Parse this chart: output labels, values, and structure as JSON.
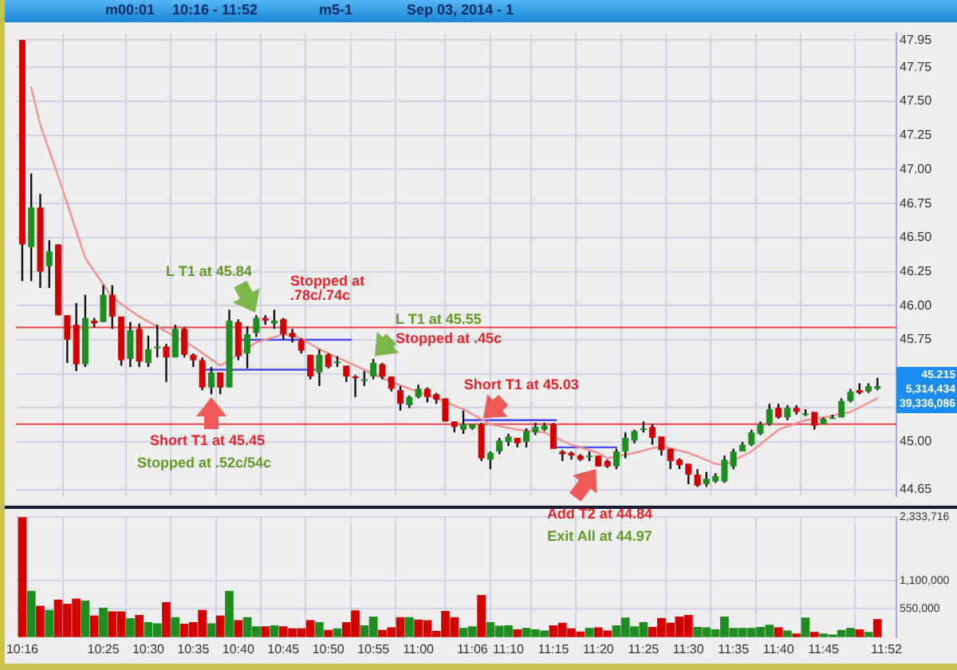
{
  "chart_data": [
    {
      "type": "candlestick",
      "x": [
        10.2667,
        10.2833,
        10.3,
        10.3167,
        10.3333,
        10.35,
        10.3667,
        10.3833,
        10.4,
        10.4167,
        10.4333,
        10.45,
        10.4667,
        10.4833,
        10.5,
        10.5167,
        10.5333,
        10.55,
        10.5667,
        10.5833,
        10.6,
        10.6167,
        10.6333,
        10.65,
        10.6667,
        10.6833,
        10.7,
        10.7167,
        10.7333,
        10.75,
        10.7667,
        10.7833,
        10.8,
        10.8167,
        10.8333,
        10.85,
        10.8667,
        10.8833,
        10.9,
        10.9167,
        10.9333,
        10.95,
        10.9667,
        10.9833,
        11,
        11.0167,
        11.0333,
        11.05,
        11.0667,
        11.0833,
        11.1,
        11.1167,
        11.1333,
        11.15,
        11.1667,
        11.1833,
        11.2,
        11.2167,
        11.2333,
        11.25,
        11.2667,
        11.2833,
        11.3,
        11.3167,
        11.3333,
        11.35,
        11.3667,
        11.3833,
        11.4,
        11.4167,
        11.4333,
        11.45,
        11.4667,
        11.4833,
        11.5,
        11.5167,
        11.5333,
        11.55,
        11.5667,
        11.5833,
        11.6,
        11.6167,
        11.6333,
        11.65,
        11.6667,
        11.6833,
        11.7,
        11.7167,
        11.7333,
        11.75,
        11.7667,
        11.7833,
        11.8,
        11.8167,
        11.8333,
        11.85
      ],
      "ohlc": [
        [
          47.95,
          47.95,
          46.18,
          46.45
        ],
        [
          46.43,
          46.97,
          46.18,
          46.72
        ],
        [
          46.72,
          46.82,
          46.13,
          46.25
        ],
        [
          46.29,
          46.48,
          46.13,
          46.4
        ],
        [
          46.45,
          46.45,
          45.93,
          45.93
        ],
        [
          45.93,
          45.93,
          45.58,
          45.75
        ],
        [
          45.86,
          46.02,
          45.52,
          45.57
        ],
        [
          45.57,
          46.08,
          45.55,
          45.91
        ],
        [
          45.89,
          45.91,
          45.84,
          45.87
        ],
        [
          45.88,
          46.15,
          45.88,
          46.08
        ],
        [
          46.08,
          46.15,
          45.83,
          45.92
        ],
        [
          45.92,
          45.92,
          45.56,
          45.6
        ],
        [
          45.61,
          45.88,
          45.55,
          45.82
        ],
        [
          45.83,
          45.87,
          45.55,
          45.59
        ],
        [
          45.58,
          45.78,
          45.55,
          45.68
        ],
        [
          45.69,
          45.86,
          45.62,
          45.7
        ],
        [
          45.7,
          45.72,
          45.44,
          45.62
        ],
        [
          45.62,
          45.86,
          45.62,
          45.83
        ],
        [
          45.83,
          45.84,
          45.62,
          45.64
        ],
        [
          45.64,
          45.65,
          45.55,
          45.6
        ],
        [
          45.6,
          45.62,
          45.38,
          45.4
        ],
        [
          45.4,
          45.55,
          45.35,
          45.51
        ],
        [
          45.51,
          45.51,
          45.35,
          45.4
        ],
        [
          45.4,
          45.97,
          45.4,
          45.89
        ],
        [
          45.88,
          45.9,
          45.6,
          45.63
        ],
        [
          45.65,
          45.85,
          45.54,
          45.79
        ],
        [
          45.8,
          45.93,
          45.77,
          45.91
        ],
        [
          45.91,
          45.93,
          45.86,
          45.89
        ],
        [
          45.87,
          45.97,
          45.83,
          45.89
        ],
        [
          45.9,
          45.91,
          45.75,
          45.79
        ],
        [
          45.8,
          45.83,
          45.73,
          45.77
        ],
        [
          45.75,
          45.76,
          45.65,
          45.67
        ],
        [
          45.64,
          45.64,
          45.46,
          45.48
        ],
        [
          45.51,
          45.68,
          45.41,
          45.64
        ],
        [
          45.64,
          45.65,
          45.54,
          45.55
        ],
        [
          45.59,
          45.63,
          45.55,
          45.59
        ],
        [
          45.56,
          45.56,
          45.44,
          45.48
        ],
        [
          45.48,
          45.49,
          45.33,
          45.47
        ],
        [
          45.46,
          45.52,
          45.41,
          45.46
        ],
        [
          45.48,
          45.61,
          45.46,
          45.58
        ],
        [
          45.57,
          45.58,
          45.46,
          45.48
        ],
        [
          45.48,
          45.48,
          45.37,
          45.39
        ],
        [
          45.38,
          45.41,
          45.23,
          45.28
        ],
        [
          45.27,
          45.34,
          45.25,
          45.33
        ],
        [
          45.33,
          45.42,
          45.32,
          45.39
        ],
        [
          45.39,
          45.4,
          45.29,
          45.33
        ],
        [
          45.35,
          45.36,
          45.28,
          45.31
        ],
        [
          45.32,
          45.32,
          45.15,
          45.15
        ],
        [
          45.15,
          45.15,
          45.07,
          45.11
        ],
        [
          45.09,
          45.23,
          45.06,
          45.13
        ],
        [
          45.1,
          45.13,
          45.09,
          45.13
        ],
        [
          45.13,
          45.14,
          44.86,
          44.88
        ],
        [
          44.87,
          44.93,
          44.8,
          44.92
        ],
        [
          44.93,
          45.03,
          44.91,
          45.01
        ],
        [
          45.0,
          45.06,
          44.97,
          45.04
        ],
        [
          45.03,
          45.03,
          44.96,
          44.99
        ],
        [
          45.0,
          45.1,
          44.96,
          45.08
        ],
        [
          45.07,
          45.14,
          45.05,
          45.11
        ],
        [
          45.09,
          45.14,
          45.08,
          45.12
        ],
        [
          45.13,
          45.14,
          44.95,
          44.95
        ],
        [
          44.93,
          44.94,
          44.86,
          44.91
        ],
        [
          44.92,
          44.93,
          44.87,
          44.9
        ],
        [
          44.9,
          44.91,
          44.86,
          44.87
        ],
        [
          44.89,
          44.93,
          44.86,
          44.9
        ],
        [
          44.9,
          44.9,
          44.82,
          44.82
        ],
        [
          44.86,
          44.87,
          44.81,
          44.82
        ],
        [
          44.82,
          44.95,
          44.8,
          44.93
        ],
        [
          44.93,
          45.07,
          44.88,
          45.03
        ],
        [
          45.01,
          45.09,
          44.99,
          45.08
        ],
        [
          45.09,
          45.15,
          45.07,
          45.1
        ],
        [
          45.11,
          45.13,
          44.98,
          45.03
        ],
        [
          45.04,
          45.04,
          44.9,
          44.94
        ],
        [
          44.95,
          44.95,
          44.8,
          44.86
        ],
        [
          44.87,
          44.88,
          44.8,
          44.83
        ],
        [
          44.84,
          44.84,
          44.69,
          44.76
        ],
        [
          44.76,
          44.8,
          44.67,
          44.68
        ],
        [
          44.69,
          44.78,
          44.67,
          44.73
        ],
        [
          44.71,
          44.77,
          44.7,
          44.75
        ],
        [
          44.71,
          44.9,
          44.7,
          44.87
        ],
        [
          44.82,
          44.95,
          44.8,
          44.93
        ],
        [
          44.93,
          45.0,
          44.93,
          44.98
        ],
        [
          44.98,
          45.09,
          44.97,
          45.07
        ],
        [
          45.06,
          45.15,
          45.05,
          45.13
        ],
        [
          45.13,
          45.28,
          45.12,
          45.24
        ],
        [
          45.25,
          45.28,
          45.17,
          45.18
        ],
        [
          45.18,
          45.27,
          45.16,
          45.25
        ],
        [
          45.25,
          45.27,
          45.2,
          45.22
        ],
        [
          45.21,
          45.24,
          45.19,
          45.21
        ],
        [
          45.22,
          45.22,
          45.09,
          45.12
        ],
        [
          45.13,
          45.18,
          45.13,
          45.17
        ],
        [
          45.18,
          45.2,
          45.17,
          45.18
        ],
        [
          45.18,
          45.32,
          45.18,
          45.3
        ],
        [
          45.3,
          45.39,
          45.29,
          45.37
        ],
        [
          45.38,
          45.43,
          45.35,
          45.36
        ],
        [
          45.37,
          45.43,
          45.36,
          45.41
        ],
        [
          45.39,
          45.47,
          45.38,
          45.41
        ]
      ],
      "colors": [
        "#d40000",
        "#1e8c1e",
        "#d40000",
        "#1e8c1e",
        "#d40000",
        "#d40000",
        "#d40000",
        "#1e8c1e",
        "#d40000",
        "#1e8c1e",
        "#d40000",
        "#d40000",
        "#1e8c1e",
        "#d40000",
        "#1e8c1e",
        "#1e8c1e",
        "#d40000",
        "#1e8c1e",
        "#d40000",
        "#d40000",
        "#d40000",
        "#1e8c1e",
        "#d40000",
        "#1e8c1e",
        "#d40000",
        "#1e8c1e",
        "#1e8c1e",
        "#d40000",
        "#1e8c1e",
        "#d40000",
        "#d40000",
        "#d40000",
        "#d40000",
        "#1e8c1e",
        "#d40000",
        "#1e8c1e",
        "#d40000",
        "#d40000",
        "#1e8c1e",
        "#1e8c1e",
        "#d40000",
        "#d40000",
        "#d40000",
        "#1e8c1e",
        "#1e8c1e",
        "#d40000",
        "#d40000",
        "#d40000",
        "#d40000",
        "#1e8c1e",
        "#1e8c1e",
        "#d40000",
        "#1e8c1e",
        "#1e8c1e",
        "#1e8c1e",
        "#d40000",
        "#1e8c1e",
        "#1e8c1e",
        "#1e8c1e",
        "#d40000",
        "#d40000",
        "#d40000",
        "#d40000",
        "#1e8c1e",
        "#d40000",
        "#d40000",
        "#1e8c1e",
        "#1e8c1e",
        "#1e8c1e",
        "#1e8c1e",
        "#d40000",
        "#d40000",
        "#d40000",
        "#d40000",
        "#d40000",
        "#d40000",
        "#1e8c1e",
        "#1e8c1e",
        "#1e8c1e",
        "#1e8c1e",
        "#1e8c1e",
        "#1e8c1e",
        "#1e8c1e",
        "#1e8c1e",
        "#d40000",
        "#1e8c1e",
        "#d40000",
        "#1e8c1e",
        "#d40000",
        "#1e8c1e",
        "#1e8c1e",
        "#1e8c1e",
        "#1e8c1e",
        "#d40000",
        "#1e8c1e",
        "#1e8c1e"
      ],
      "series": [
        {
          "type": "line",
          "color": "#f29090",
          "x": [
            10.2833,
            10.3,
            10.3333,
            10.3833,
            10.4333,
            10.4833,
            10.5333,
            10.5833,
            10.6333,
            10.65,
            10.7,
            10.75,
            10.7833,
            10.8167,
            10.8833,
            10.9333,
            10.9833,
            11.0333,
            11.0833,
            11.1333,
            11.1833,
            11.2333,
            11.2833,
            11.3333,
            11.35,
            11.4,
            11.45,
            11.5,
            11.55,
            11.5667,
            11.6167,
            11.6667,
            11.7167,
            11.75,
            11.8,
            11.85
          ],
          "values": [
            47.6,
            47.33,
            46.95,
            46.35,
            46.06,
            45.92,
            45.81,
            45.7,
            45.56,
            45.6,
            45.73,
            45.79,
            45.76,
            45.68,
            45.56,
            45.47,
            45.39,
            45.32,
            45.24,
            45.13,
            45.09,
            45.07,
            44.98,
            44.92,
            44.88,
            44.92,
            44.97,
            44.92,
            44.84,
            44.83,
            44.93,
            45.09,
            45.16,
            45.18,
            45.22,
            45.32
          ]
        },
        {
          "type": "line",
          "color": "#4a4af0",
          "x": [
            10.6667,
            10.875
          ],
          "values": [
            45.75,
            45.75
          ]
        },
        {
          "type": "line",
          "color": "#4a4af0",
          "x": [
            10.605,
            10.8083
          ],
          "values": [
            45.53,
            45.53
          ]
        },
        {
          "type": "line",
          "color": "#4a4af0",
          "x": [
            11.085,
            11.255
          ],
          "values": [
            45.16,
            45.16
          ]
        },
        {
          "type": "line",
          "color": "#4a4af0",
          "x": [
            11.255,
            11.3667
          ],
          "values": [
            44.96,
            44.96
          ]
        }
      ],
      "ref_lines": [
        {
          "axis": "y",
          "value": 45.84,
          "color": "#e84848"
        },
        {
          "axis": "y",
          "value": 45.13,
          "color": "#e84848"
        }
      ],
      "xlim": [
        10.255,
        11.885
      ],
      "xticks": [
        {
          "value": 10.2667,
          "label": null
        },
        {
          "value": 10.4167,
          "label": null
        },
        {
          "value": 10.5,
          "label": null
        },
        {
          "value": 10.5833,
          "label": null
        },
        {
          "value": 10.6667,
          "label": null
        },
        {
          "value": 10.75,
          "label": null
        },
        {
          "value": 10.8333,
          "label": null
        },
        {
          "value": 10.9167,
          "label": null
        },
        {
          "value": 11,
          "label": null
        },
        {
          "value": 11.1,
          "label": null
        },
        {
          "value": 11.1667,
          "label": null
        },
        {
          "value": 11.25,
          "label": null
        },
        {
          "value": 11.3333,
          "label": null
        },
        {
          "value": 11.4167,
          "label": null
        },
        {
          "value": 11.5,
          "label": null
        },
        {
          "value": 11.5833,
          "label": null
        },
        {
          "value": 11.6667,
          "label": null
        },
        {
          "value": 11.75,
          "label": null
        },
        {
          "value": 11.8667,
          "label": null
        }
      ],
      "ylim": [
        44.6,
        48.0
      ],
      "yticks": [
        44.65,
        {
          "value": 45,
          "label": "45.00"
        },
        {
          "value": 45.25,
          "label": null
        },
        {
          "value": 45.5,
          "label": null
        },
        45.75,
        {
          "value": 46,
          "label": "46.00"
        },
        46.25,
        {
          "value": 46.5,
          "label": "46.50"
        },
        46.75,
        {
          "value": 47,
          "label": "47.00"
        },
        47.25,
        {
          "value": 47.5,
          "label": "47.50"
        },
        47.75,
        47.95
      ],
      "grid": true,
      "tick_labels": "y",
      "annotations": [
        "m00:01",
        "10:16 - 11:52",
        "m5-1",
        "Sep 03, 2014 - 1",
        {
          "text": "L T1 at 45.84",
          "x": 10.7,
          "y": 45.93
        },
        "Stopped at .78c/.74c",
        {
          "text": "L T1 at 45.55",
          "x": 10.9167,
          "y": 45.61
        },
        "Stopped at .45c",
        {
          "text": "Short T1 at 45.03",
          "x": 11.1167,
          "y": 45.16
        },
        {
          "text": "Short T1 at 45.45",
          "x": 10.6167,
          "y": 45.35
        },
        "Stopped at .52c/54c",
        {
          "text": "Add T2 at 44.84",
          "x": 11.3333,
          "y": 44.82
        },
        "Exit All at 44.97",
        "45.215",
        "5,314,434",
        "39,336,086"
      ]
    },
    {
      "type": "bar",
      "x": [
        10.2667,
        10.2833,
        10.3,
        10.3167,
        10.3333,
        10.35,
        10.3667,
        10.3833,
        10.4,
        10.4167,
        10.4333,
        10.45,
        10.4667,
        10.4833,
        10.5,
        10.5167,
        10.5333,
        10.55,
        10.5667,
        10.5833,
        10.6,
        10.6167,
        10.6333,
        10.65,
        10.6667,
        10.6833,
        10.7,
        10.7167,
        10.7333,
        10.75,
        10.7667,
        10.7833,
        10.8,
        10.8167,
        10.8333,
        10.85,
        10.8667,
        10.8833,
        10.9,
        10.9167,
        10.9333,
        10.95,
        10.9667,
        10.9833,
        11,
        11.0167,
        11.0333,
        11.05,
        11.0667,
        11.0833,
        11.1,
        11.1167,
        11.1333,
        11.15,
        11.1667,
        11.1833,
        11.2,
        11.2167,
        11.2333,
        11.25,
        11.2667,
        11.2833,
        11.3,
        11.3167,
        11.3333,
        11.35,
        11.3667,
        11.3833,
        11.4,
        11.4167,
        11.4333,
        11.45,
        11.4667,
        11.4833,
        11.5,
        11.5167,
        11.5333,
        11.55,
        11.5667,
        11.5833,
        11.6,
        11.6167,
        11.6333,
        11.65,
        11.6667,
        11.6833,
        11.7,
        11.7167,
        11.7333,
        11.75,
        11.7667,
        11.7833,
        11.8,
        11.8167,
        11.8333,
        11.85
      ],
      "values": [
        2330000,
        890000,
        600000,
        520000,
        720000,
        640000,
        740000,
        700000,
        410000,
        560000,
        490000,
        490000,
        360000,
        420000,
        280000,
        260000,
        670000,
        380000,
        250000,
        280000,
        520000,
        260000,
        410000,
        890000,
        320000,
        380000,
        200000,
        200000,
        220000,
        200000,
        160000,
        160000,
        320000,
        280000,
        130000,
        160000,
        280000,
        510000,
        220000,
        390000,
        130000,
        180000,
        380000,
        380000,
        330000,
        320000,
        110000,
        500000,
        380000,
        170000,
        200000,
        810000,
        280000,
        210000,
        220000,
        140000,
        170000,
        140000,
        120000,
        220000,
        270000,
        160000,
        100000,
        170000,
        180000,
        120000,
        220000,
        370000,
        200000,
        280000,
        190000,
        360000,
        270000,
        390000,
        420000,
        190000,
        180000,
        140000,
        390000,
        170000,
        170000,
        170000,
        190000,
        230000,
        180000,
        120000,
        60000,
        370000,
        90000,
        60000,
        40000,
        130000,
        170000,
        140000,
        90000,
        340000
      ],
      "colors": [
        "#d40000",
        "#1e8c1e",
        "#d40000",
        "#1e8c1e",
        "#d40000",
        "#d40000",
        "#d40000",
        "#1e8c1e",
        "#d40000",
        "#1e8c1e",
        "#d40000",
        "#d40000",
        "#1e8c1e",
        "#d40000",
        "#1e8c1e",
        "#1e8c1e",
        "#d40000",
        "#1e8c1e",
        "#d40000",
        "#d40000",
        "#d40000",
        "#1e8c1e",
        "#d40000",
        "#1e8c1e",
        "#d40000",
        "#1e8c1e",
        "#1e8c1e",
        "#d40000",
        "#1e8c1e",
        "#d40000",
        "#d40000",
        "#d40000",
        "#d40000",
        "#1e8c1e",
        "#d40000",
        "#1e8c1e",
        "#d40000",
        "#d40000",
        "#1e8c1e",
        "#1e8c1e",
        "#d40000",
        "#d40000",
        "#d40000",
        "#1e8c1e",
        "#d40000",
        "#d40000",
        "#d40000",
        "#d40000",
        "#d40000",
        "#1e8c1e",
        "#1e8c1e",
        "#d40000",
        "#1e8c1e",
        "#1e8c1e",
        "#1e8c1e",
        "#d40000",
        "#1e8c1e",
        "#1e8c1e",
        "#1e8c1e",
        "#d40000",
        "#d40000",
        "#d40000",
        "#d40000",
        "#1e8c1e",
        "#d40000",
        "#d40000",
        "#1e8c1e",
        "#1e8c1e",
        "#1e8c1e",
        "#1e8c1e",
        "#d40000",
        "#d40000",
        "#d40000",
        "#d40000",
        "#d40000",
        "#1e8c1e",
        "#1e8c1e",
        "#1e8c1e",
        "#1e8c1e",
        "#1e8c1e",
        "#1e8c1e",
        "#1e8c1e",
        "#1e8c1e",
        "#1e8c1e",
        "#d40000",
        "#1e8c1e",
        "#d40000",
        "#1e8c1e",
        "#d40000",
        "#1e8c1e",
        "#1e8c1e",
        "#1e8c1e",
        "#1e8c1e",
        "#d40000",
        "#1e8c1e",
        "#d40000"
      ],
      "xlim": [
        10.255,
        11.885
      ],
      "xticks": [
        {
          "value": 10.2667,
          "label": "10:16"
        },
        {
          "value": 10.4167,
          "label": "10:25"
        },
        {
          "value": 10.5,
          "label": "10:30"
        },
        {
          "value": 10.5833,
          "label": "10:35"
        },
        {
          "value": 10.6667,
          "label": "10:40"
        },
        {
          "value": 10.75,
          "label": "10:45"
        },
        {
          "value": 10.8333,
          "label": "10:50"
        },
        {
          "value": 10.9167,
          "label": "10:55"
        },
        {
          "value": 11,
          "label": "11:00"
        },
        {
          "value": 11.1,
          "label": "11:06"
        },
        {
          "value": 11.1667,
          "label": "11:10"
        },
        {
          "value": 11.25,
          "label": "11:15"
        },
        {
          "value": 11.3333,
          "label": "11:20"
        },
        {
          "value": 11.4167,
          "label": "11:25"
        },
        {
          "value": 11.5,
          "label": "11:30"
        },
        {
          "value": 11.5833,
          "label": "11:35"
        },
        {
          "value": 11.6667,
          "label": "11:40"
        },
        {
          "value": 11.75,
          "label": "11:45"
        },
        {
          "value": 11.8667,
          "label": "11:52"
        }
      ],
      "ylim": [
        0,
        2333716
      ],
      "yticks": [
        {
          "value": 550000,
          "label": "550,000"
        },
        {
          "value": 1100000,
          "label": "1,100,000"
        },
        {
          "value": 2333716,
          "label": "2,333,716"
        }
      ],
      "grid": true
    }
  ]
}
